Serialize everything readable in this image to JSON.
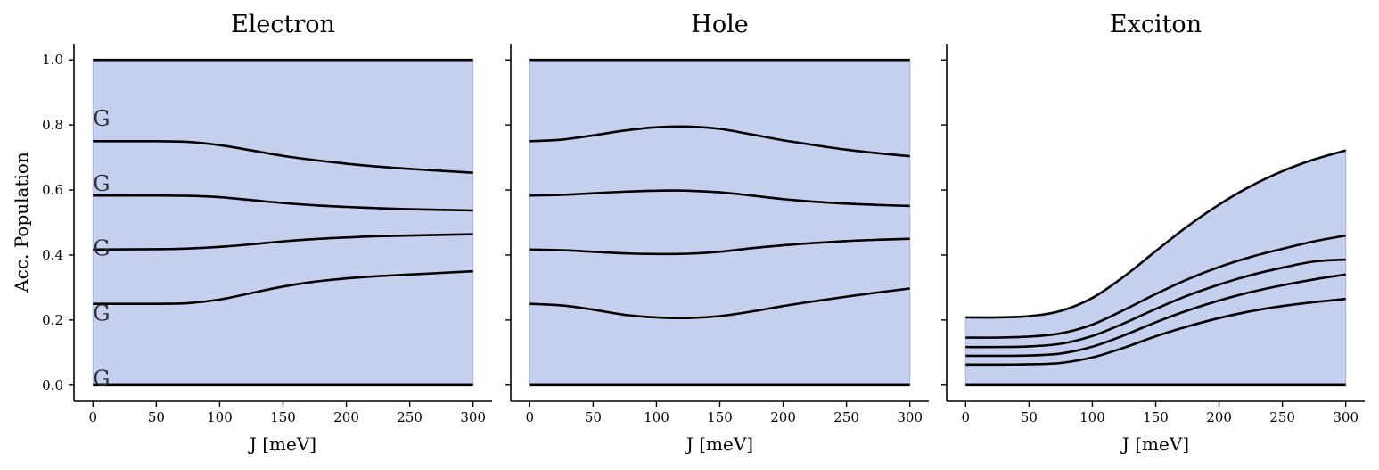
{
  "chart_data": [
    {
      "type": "area",
      "title": "Electron",
      "xlabel": "J [meV]",
      "ylabel": "Acc. Population",
      "xlim": [
        -15,
        315
      ],
      "ylim": [
        -0.05,
        1.05
      ],
      "xticks": [
        0,
        50,
        100,
        150,
        200,
        250,
        300
      ],
      "yticks": [
        0.0,
        0.2,
        0.4,
        0.6,
        0.8,
        1.0
      ],
      "show_yticklabels": true,
      "band_labels": [
        {
          "text": "G",
          "x": 0,
          "y": 0.82
        },
        {
          "text": "G",
          "x": 0,
          "y": 0.62
        },
        {
          "text": "G",
          "x": 0,
          "y": 0.42
        },
        {
          "text": "G",
          "x": 0,
          "y": 0.22
        },
        {
          "text": "G",
          "x": 0,
          "y": 0.02
        }
      ],
      "x": [
        0,
        50,
        75,
        100,
        125,
        150,
        175,
        200,
        225,
        250,
        275,
        300
      ],
      "series": [
        {
          "values": [
            0,
            0,
            0,
            0,
            0,
            0,
            0,
            0,
            0,
            0,
            0,
            0
          ]
        },
        {
          "values": [
            0.25,
            0.25,
            0.252,
            0.263,
            0.283,
            0.303,
            0.318,
            0.328,
            0.335,
            0.34,
            0.345,
            0.35
          ]
        },
        {
          "values": [
            0.417,
            0.418,
            0.42,
            0.425,
            0.433,
            0.442,
            0.449,
            0.454,
            0.458,
            0.46,
            0.462,
            0.464
          ]
        },
        {
          "values": [
            0.583,
            0.583,
            0.582,
            0.578,
            0.569,
            0.56,
            0.553,
            0.548,
            0.544,
            0.541,
            0.539,
            0.537
          ]
        },
        {
          "values": [
            0.75,
            0.75,
            0.748,
            0.738,
            0.722,
            0.705,
            0.692,
            0.681,
            0.672,
            0.665,
            0.659,
            0.653
          ]
        },
        {
          "values": [
            1,
            1,
            1,
            1,
            1,
            1,
            1,
            1,
            1,
            1,
            1,
            1
          ]
        }
      ]
    },
    {
      "type": "area",
      "title": "Hole",
      "xlabel": "J [meV]",
      "ylabel": "",
      "xlim": [
        -15,
        315
      ],
      "ylim": [
        -0.05,
        1.05
      ],
      "xticks": [
        0,
        50,
        100,
        150,
        200,
        250,
        300
      ],
      "yticks": [
        0.0,
        0.2,
        0.4,
        0.6,
        0.8,
        1.0
      ],
      "show_yticklabels": false,
      "band_labels": [],
      "x": [
        0,
        25,
        50,
        75,
        100,
        125,
        150,
        175,
        200,
        225,
        250,
        275,
        300
      ],
      "series": [
        {
          "values": [
            0,
            0,
            0,
            0,
            0,
            0,
            0,
            0,
            0,
            0,
            0,
            0,
            0
          ]
        },
        {
          "values": [
            0.25,
            0.245,
            0.232,
            0.216,
            0.208,
            0.206,
            0.212,
            0.226,
            0.243,
            0.258,
            0.272,
            0.285,
            0.297
          ]
        },
        {
          "values": [
            0.417,
            0.415,
            0.41,
            0.405,
            0.403,
            0.404,
            0.41,
            0.421,
            0.43,
            0.437,
            0.443,
            0.447,
            0.45
          ]
        },
        {
          "values": [
            0.583,
            0.585,
            0.59,
            0.595,
            0.598,
            0.598,
            0.593,
            0.583,
            0.572,
            0.564,
            0.558,
            0.554,
            0.551
          ]
        },
        {
          "values": [
            0.75,
            0.755,
            0.768,
            0.783,
            0.793,
            0.795,
            0.788,
            0.771,
            0.753,
            0.738,
            0.724,
            0.713,
            0.704
          ]
        },
        {
          "values": [
            1,
            1,
            1,
            1,
            1,
            1,
            1,
            1,
            1,
            1,
            1,
            1,
            1
          ]
        }
      ]
    },
    {
      "type": "area",
      "title": "Exciton",
      "xlabel": "J [meV]",
      "ylabel": "",
      "xlim": [
        -15,
        315
      ],
      "ylim": [
        -0.05,
        1.05
      ],
      "xticks": [
        0,
        50,
        100,
        150,
        200,
        250,
        300
      ],
      "yticks": [
        0.0,
        0.2,
        0.4,
        0.6,
        0.8,
        1.0
      ],
      "show_yticklabels": false,
      "band_labels": [],
      "x": [
        0,
        25,
        50,
        75,
        100,
        125,
        150,
        175,
        200,
        225,
        250,
        275,
        300
      ],
      "series": [
        {
          "values": [
            0,
            0,
            0,
            0,
            0,
            0,
            0,
            0,
            0,
            0,
            0,
            0,
            0
          ]
        },
        {
          "values": [
            0.063,
            0.063,
            0.064,
            0.068,
            0.085,
            0.115,
            0.15,
            0.18,
            0.206,
            0.227,
            0.243,
            0.255,
            0.265
          ]
        },
        {
          "values": [
            0.09,
            0.09,
            0.091,
            0.097,
            0.118,
            0.153,
            0.193,
            0.229,
            0.26,
            0.286,
            0.307,
            0.325,
            0.34
          ]
        },
        {
          "values": [
            0.117,
            0.117,
            0.119,
            0.127,
            0.151,
            0.19,
            0.234,
            0.275,
            0.309,
            0.338,
            0.361,
            0.38,
            0.386
          ]
        },
        {
          "values": [
            0.146,
            0.146,
            0.149,
            0.159,
            0.186,
            0.231,
            0.28,
            0.325,
            0.363,
            0.394,
            0.419,
            0.442,
            0.46
          ]
        },
        {
          "values": [
            0.208,
            0.208,
            0.212,
            0.228,
            0.268,
            0.334,
            0.412,
            0.488,
            0.555,
            0.612,
            0.658,
            0.694,
            0.722
          ]
        }
      ]
    }
  ]
}
